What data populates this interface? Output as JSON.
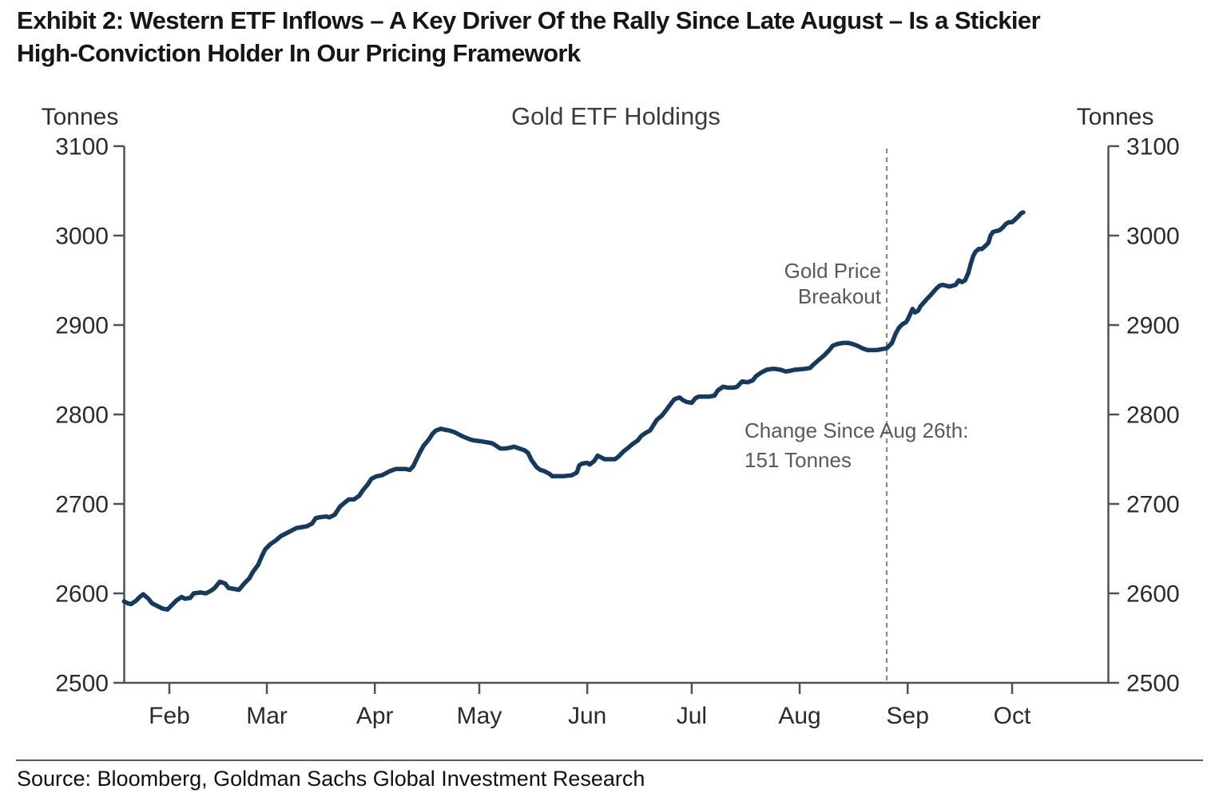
{
  "header": {
    "title_line1": "Exhibit 2: Western ETF Inflows – A Key Driver Of the Rally Since Late August – Is a Stickier",
    "title_line2": "High-Conviction Holder In Our Pricing Framework"
  },
  "footer": {
    "source": "Source: Bloomberg, Goldman Sachs Global Investment Research"
  },
  "colors": {
    "series_line": "#16395e",
    "axis": "#515154",
    "annotation_text": "#595959",
    "dashed_line": "#8a8a8a"
  },
  "chart_data": {
    "type": "line",
    "title": "Gold ETF Holdings",
    "y_axis_label_left": "Tonnes",
    "y_axis_label_right": "Tonnes",
    "ylim": [
      2500,
      3100
    ],
    "y_ticks": [
      2500,
      2600,
      2700,
      2800,
      2900,
      3000,
      3100
    ],
    "grid": false,
    "legend": "none",
    "x_ticks": [
      {
        "label": "Feb",
        "day": 32
      },
      {
        "label": "Mar",
        "day": 60
      },
      {
        "label": "Apr",
        "day": 91
      },
      {
        "label": "May",
        "day": 121
      },
      {
        "label": "Jun",
        "day": 152
      },
      {
        "label": "Jul",
        "day": 182
      },
      {
        "label": "Aug",
        "day": 213
      },
      {
        "label": "Sep",
        "day": 244
      },
      {
        "label": "Oct",
        "day": 274
      }
    ],
    "x_range_days": [
      19,
      277.5
    ],
    "annotations": {
      "breakout_line1": "Gold Price",
      "breakout_line2": "Breakout",
      "breakout_day": 238,
      "change_line1": "Change Since Aug 26th:",
      "change_line2": "151 Tonnes"
    },
    "series": [
      {
        "name": "Gold ETF Holdings (tonnes)",
        "points": [
          [
            19,
            2591
          ],
          [
            20,
            2589
          ],
          [
            21,
            2588
          ],
          [
            22.5,
            2592
          ],
          [
            23.5,
            2596
          ],
          [
            24.5,
            2599
          ],
          [
            26,
            2594
          ],
          [
            27,
            2589
          ],
          [
            28.5,
            2586
          ],
          [
            30,
            2583
          ],
          [
            31.5,
            2582
          ],
          [
            33,
            2588
          ],
          [
            34,
            2592
          ],
          [
            35.5,
            2596
          ],
          [
            36.5,
            2594
          ],
          [
            38,
            2595
          ],
          [
            39,
            2600
          ],
          [
            41,
            2601
          ],
          [
            42.5,
            2600
          ],
          [
            44,
            2603
          ],
          [
            45,
            2606
          ],
          [
            46.5,
            2613
          ],
          [
            48,
            2611
          ],
          [
            49,
            2606
          ],
          [
            50.5,
            2605
          ],
          [
            52,
            2604
          ],
          [
            53.5,
            2611
          ],
          [
            55,
            2617
          ],
          [
            56,
            2624
          ],
          [
            57.5,
            2632
          ],
          [
            58.5,
            2641
          ],
          [
            59.5,
            2649
          ],
          [
            61,
            2655
          ],
          [
            62.5,
            2659
          ],
          [
            64,
            2664
          ],
          [
            65.5,
            2667
          ],
          [
            67,
            2670
          ],
          [
            68.5,
            2673
          ],
          [
            70,
            2674
          ],
          [
            71.5,
            2675
          ],
          [
            73,
            2678
          ],
          [
            74,
            2684
          ],
          [
            75,
            2685
          ],
          [
            77,
            2686
          ],
          [
            78,
            2685
          ],
          [
            79.5,
            2688
          ],
          [
            81,
            2697
          ],
          [
            82.5,
            2702
          ],
          [
            83.5,
            2705
          ],
          [
            85,
            2705
          ],
          [
            86.5,
            2709
          ],
          [
            87.5,
            2715
          ],
          [
            89,
            2722
          ],
          [
            90,
            2728
          ],
          [
            91.5,
            2731
          ],
          [
            93,
            2732
          ],
          [
            94,
            2734
          ],
          [
            95.5,
            2737
          ],
          [
            97,
            2739
          ],
          [
            100,
            2739
          ],
          [
            101,
            2738
          ],
          [
            102,
            2742
          ],
          [
            103,
            2750
          ],
          [
            104,
            2758
          ],
          [
            105,
            2765
          ],
          [
            106.5,
            2772
          ],
          [
            107.5,
            2778
          ],
          [
            108.5,
            2782
          ],
          [
            110,
            2784
          ],
          [
            111,
            2783
          ],
          [
            112.5,
            2782
          ],
          [
            114,
            2780
          ],
          [
            115.5,
            2777
          ],
          [
            116.5,
            2775
          ],
          [
            118.5,
            2772
          ],
          [
            119.5,
            2771
          ],
          [
            121.5,
            2770
          ],
          [
            123,
            2769
          ],
          [
            124.5,
            2768
          ],
          [
            125.5,
            2766
          ],
          [
            127,
            2762
          ],
          [
            128.5,
            2762
          ],
          [
            130,
            2763
          ],
          [
            131,
            2764
          ],
          [
            132.5,
            2762
          ],
          [
            134,
            2760
          ],
          [
            135,
            2757
          ],
          [
            136,
            2749
          ],
          [
            137.5,
            2741
          ],
          [
            138.5,
            2738
          ],
          [
            139.5,
            2737
          ],
          [
            141,
            2734
          ],
          [
            142,
            2731
          ],
          [
            145,
            2731
          ],
          [
            147.5,
            2732
          ],
          [
            149,
            2735
          ],
          [
            149.7,
            2743
          ],
          [
            150.5,
            2745
          ],
          [
            152,
            2746
          ],
          [
            152.7,
            2744
          ],
          [
            154,
            2748
          ],
          [
            155,
            2754
          ],
          [
            156,
            2752
          ],
          [
            157,
            2750
          ],
          [
            160,
            2750
          ],
          [
            161,
            2753
          ],
          [
            162.5,
            2759
          ],
          [
            163.5,
            2762
          ],
          [
            165,
            2767
          ],
          [
            166.5,
            2771
          ],
          [
            167.5,
            2776
          ],
          [
            169,
            2780
          ],
          [
            170,
            2782
          ],
          [
            171,
            2788
          ],
          [
            172,
            2794
          ],
          [
            173.5,
            2799
          ],
          [
            174.5,
            2804
          ],
          [
            176,
            2812
          ],
          [
            177,
            2817
          ],
          [
            178.5,
            2819
          ],
          [
            179.5,
            2816
          ],
          [
            180.5,
            2814
          ],
          [
            182,
            2813
          ],
          [
            183,
            2818
          ],
          [
            184,
            2820
          ],
          [
            187,
            2820
          ],
          [
            188.5,
            2821
          ],
          [
            189.5,
            2827
          ],
          [
            191,
            2831
          ],
          [
            192.5,
            2830
          ],
          [
            194,
            2830
          ],
          [
            195,
            2831
          ],
          [
            196.5,
            2837
          ],
          [
            198,
            2836
          ],
          [
            199.5,
            2838
          ],
          [
            200.5,
            2843
          ],
          [
            202,
            2847
          ],
          [
            203.5,
            2850
          ],
          [
            205,
            2851
          ],
          [
            206,
            2851
          ],
          [
            207.5,
            2850
          ],
          [
            209,
            2848
          ],
          [
            210.5,
            2849
          ],
          [
            211.5,
            2850
          ],
          [
            214.5,
            2851
          ],
          [
            216,
            2852
          ],
          [
            217,
            2856
          ],
          [
            218.5,
            2861
          ],
          [
            220,
            2866
          ],
          [
            221.5,
            2872
          ],
          [
            222.5,
            2877
          ],
          [
            224,
            2879
          ],
          [
            225.5,
            2880
          ],
          [
            227,
            2880
          ],
          [
            228,
            2879
          ],
          [
            229.5,
            2877
          ],
          [
            231,
            2874
          ],
          [
            232.5,
            2872
          ],
          [
            235,
            2872
          ],
          [
            238,
            2874
          ],
          [
            239.5,
            2880
          ],
          [
            240.5,
            2890
          ],
          [
            241.5,
            2897
          ],
          [
            242.5,
            2901
          ],
          [
            243.5,
            2903
          ],
          [
            244,
            2906
          ],
          [
            244.7,
            2912
          ],
          [
            245.4,
            2918
          ],
          [
            246.1,
            2914
          ],
          [
            247,
            2916
          ],
          [
            247.7,
            2921
          ],
          [
            248.6,
            2925
          ],
          [
            249.5,
            2929
          ],
          [
            250.5,
            2933
          ],
          [
            251.4,
            2937
          ],
          [
            252.3,
            2941
          ],
          [
            253.2,
            2944
          ],
          [
            254.1,
            2945
          ],
          [
            256,
            2943
          ],
          [
            257.8,
            2945
          ],
          [
            258.7,
            2950
          ],
          [
            259.6,
            2948
          ],
          [
            260.5,
            2950
          ],
          [
            261.4,
            2958
          ],
          [
            262.1,
            2968
          ],
          [
            262.8,
            2977
          ],
          [
            263.5,
            2982
          ],
          [
            264.4,
            2985
          ],
          [
            265.3,
            2985
          ],
          [
            266.2,
            2988
          ],
          [
            267.2,
            2992
          ],
          [
            267.8,
            3000
          ],
          [
            268.5,
            3004
          ],
          [
            269.4,
            3005
          ],
          [
            270.4,
            3006
          ],
          [
            271.3,
            3009
          ],
          [
            272.2,
            3013
          ],
          [
            273.1,
            3015
          ],
          [
            274,
            3015
          ],
          [
            274.9,
            3018
          ],
          [
            275.9,
            3022
          ],
          [
            276.6,
            3025
          ],
          [
            277.2,
            3026
          ]
        ]
      }
    ]
  }
}
